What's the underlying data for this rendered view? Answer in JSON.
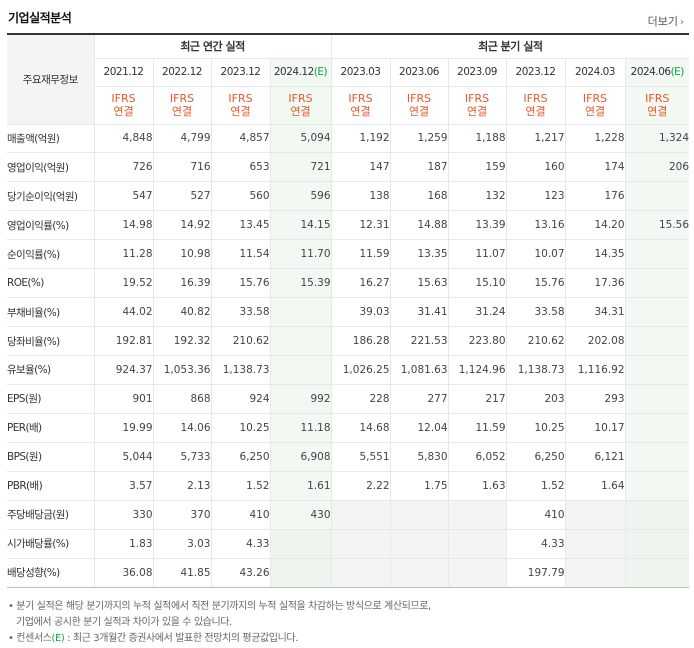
{
  "header": {
    "title": "기업실적분석",
    "more_label": "더보기",
    "more_icon": "chevron-right-icon"
  },
  "table": {
    "row_header_label": "주요재무정보",
    "groups": {
      "annual": "최근 연간 실적",
      "quarter": "최근 분기 실적"
    },
    "annual_periods": [
      {
        "label": "2021.12",
        "est": ""
      },
      {
        "label": "2022.12",
        "est": ""
      },
      {
        "label": "2023.12",
        "est": ""
      },
      {
        "label": "2024.12",
        "est": "(E)"
      }
    ],
    "quarter_periods": [
      {
        "label": "2023.03",
        "est": ""
      },
      {
        "label": "2023.06",
        "est": ""
      },
      {
        "label": "2023.09",
        "est": ""
      },
      {
        "label": "2023.12",
        "est": ""
      },
      {
        "label": "2024.03",
        "est": ""
      },
      {
        "label": "2024.06",
        "est": "(E)"
      }
    ],
    "ifrs_line1": "IFRS",
    "ifrs_line2": "연결",
    "rows": [
      {
        "label": "매출액(억원)",
        "values": [
          "4,848",
          "4,799",
          "4,857",
          "5,094",
          "1,192",
          "1,259",
          "1,188",
          "1,217",
          "1,228",
          "1,324"
        ]
      },
      {
        "label": "영업이익(억원)",
        "values": [
          "726",
          "716",
          "653",
          "721",
          "147",
          "187",
          "159",
          "160",
          "174",
          "206"
        ]
      },
      {
        "label": "당기순이익(억원)",
        "values": [
          "547",
          "527",
          "560",
          "596",
          "138",
          "168",
          "132",
          "123",
          "176",
          ""
        ]
      },
      {
        "label": "영업이익률(%)",
        "values": [
          "14.98",
          "14.92",
          "13.45",
          "14.15",
          "12.31",
          "14.88",
          "13.39",
          "13.16",
          "14.20",
          "15.56"
        ]
      },
      {
        "label": "순이익률(%)",
        "values": [
          "11.28",
          "10.98",
          "11.54",
          "11.70",
          "11.59",
          "13.35",
          "11.07",
          "10.07",
          "14.35",
          ""
        ]
      },
      {
        "label": "ROE(%)",
        "values": [
          "19.52",
          "16.39",
          "15.76",
          "15.39",
          "16.27",
          "15.63",
          "15.10",
          "15.76",
          "17.36",
          ""
        ]
      },
      {
        "label": "부채비율(%)",
        "values": [
          "44.02",
          "40.82",
          "33.58",
          "",
          "39.03",
          "31.41",
          "31.24",
          "33.58",
          "34.31",
          ""
        ]
      },
      {
        "label": "당좌비율(%)",
        "values": [
          "192.81",
          "192.32",
          "210.62",
          "",
          "186.28",
          "221.53",
          "223.80",
          "210.62",
          "202.08",
          ""
        ]
      },
      {
        "label": "유보율(%)",
        "values": [
          "924.37",
          "1,053.36",
          "1,138.73",
          "",
          "1,026.25",
          "1,081.63",
          "1,124.96",
          "1,138.73",
          "1,116.92",
          ""
        ]
      },
      {
        "label": "EPS(원)",
        "values": [
          "901",
          "868",
          "924",
          "992",
          "228",
          "277",
          "217",
          "203",
          "293",
          ""
        ]
      },
      {
        "label": "PER(배)",
        "values": [
          "19.99",
          "14.06",
          "10.25",
          "11.18",
          "14.68",
          "12.04",
          "11.59",
          "10.25",
          "10.17",
          ""
        ]
      },
      {
        "label": "BPS(원)",
        "values": [
          "5,044",
          "5,733",
          "6,250",
          "6,908",
          "5,551",
          "5,830",
          "6,052",
          "6,250",
          "6,121",
          ""
        ]
      },
      {
        "label": "PBR(배)",
        "values": [
          "3.57",
          "2.13",
          "1.52",
          "1.61",
          "2.22",
          "1.75",
          "1.63",
          "1.52",
          "1.64",
          ""
        ]
      },
      {
        "label": "주당배당금(원)",
        "values": [
          "330",
          "370",
          "410",
          "430",
          "",
          "",
          "",
          "410",
          "",
          ""
        ]
      },
      {
        "label": "시가배당률(%)",
        "values": [
          "1.83",
          "3.03",
          "4.33",
          "",
          "",
          "",
          "",
          "4.33",
          "",
          ""
        ]
      },
      {
        "label": "배당성향(%)",
        "values": [
          "36.08",
          "41.85",
          "43.26",
          "",
          "",
          "",
          "",
          "197.79",
          "",
          ""
        ]
      }
    ]
  },
  "notes": {
    "line1": "분기 실적은 해당 분기까지의 누적 실적에서 직전 분기까지의 누적 실적을 차감하는 방식으로 계산되므로,",
    "line2": "기업에서 공시한 분기 실적과 차이가 있을 수 있습니다.",
    "line3_pre": "컨센서스",
    "line3_e": "(E)",
    "line3_post": " : 최근 3개월간 증권사에서 발표한 전망치의 평균값입니다."
  },
  "colors": {
    "ifrs": "#e8572a",
    "estimate": "#16a34a",
    "estimate_bg": "#f2f8f2",
    "header_bg": "#f4f4f4"
  }
}
